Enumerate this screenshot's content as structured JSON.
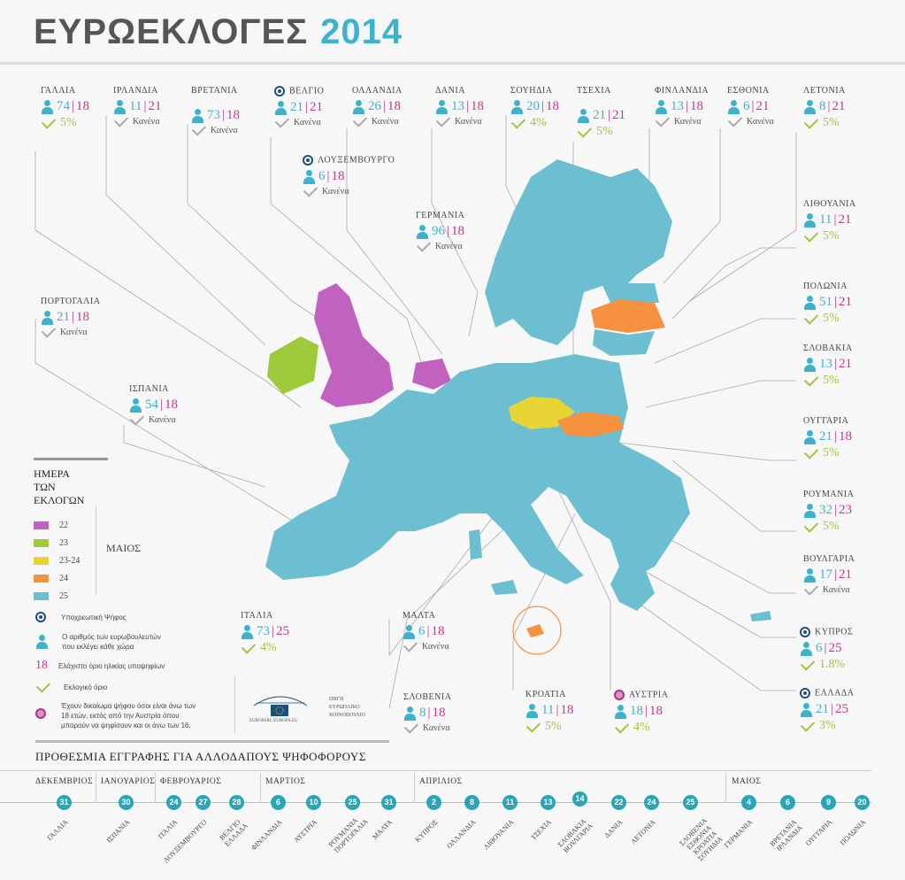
{
  "title": {
    "word": "ΕΥΡΩΕΚΛΟΓΕΣ",
    "year": "2014"
  },
  "colors": {
    "accent": "#3bb3cf",
    "age": "#c9348e",
    "threshold": "#a6c23a",
    "d22": "#c162c1",
    "d23": "#9dc93b",
    "d2324": "#e6d534",
    "d24": "#f5913f",
    "d25": "#6bbfd0"
  },
  "none_text": "Κανένα",
  "countries": [
    {
      "id": "gallia",
      "name": "ΓΑΛΛΙΑ",
      "seats": "74",
      "age": "18",
      "threshold": "5%"
    },
    {
      "id": "irlandia",
      "name": "ΙΡΛΑΝΔΙΑ",
      "seats": "11",
      "age": "21",
      "threshold": "Κανένα"
    },
    {
      "id": "vretania",
      "name": "ΒΡΕΤΑΝΙΑ",
      "seats": "73",
      "age": "18",
      "threshold": "Κανένα"
    },
    {
      "id": "velgio",
      "name": "ΒΕΛΓΙΟ",
      "seats": "21",
      "age": "21",
      "threshold": "Κανένα",
      "compulsory": true
    },
    {
      "id": "ollandia",
      "name": "ΟΛΛΑΝΔΙΑ",
      "seats": "26",
      "age": "18",
      "threshold": "Κανένα"
    },
    {
      "id": "dania",
      "name": "ΔΑΝΙΑ",
      "seats": "13",
      "age": "18",
      "threshold": "Κανένα"
    },
    {
      "id": "souidia",
      "name": "ΣΟΥΗΔΙΑ",
      "seats": "20",
      "age": "18",
      "threshold": "4%"
    },
    {
      "id": "tsexia",
      "name": "ΤΣΕΧΙΑ",
      "seats": "21",
      "age": "21",
      "threshold": "5%"
    },
    {
      "id": "finlandia",
      "name": "ΦΙΝΛΑΝΔΙΑ",
      "seats": "13",
      "age": "18",
      "threshold": "Κανένα"
    },
    {
      "id": "esthonia",
      "name": "ΕΣΘΟΝΙΑ",
      "seats": "6",
      "age": "21",
      "threshold": "Κανένα"
    },
    {
      "id": "letonia",
      "name": "ΛΕΤΟΝΙΑ",
      "seats": "8",
      "age": "21",
      "threshold": "5%"
    },
    {
      "id": "luxembourg",
      "name": "ΛΟΥΞΕΜΒΟΥΡΓΟ",
      "seats": "6",
      "age": "18",
      "threshold": "Κανένα",
      "compulsory": true
    },
    {
      "id": "germania",
      "name": "ΓΕΡΜΑΝΙΑ",
      "seats": "96",
      "age": "18",
      "threshold": "Κανένα"
    },
    {
      "id": "lithouania",
      "name": "ΛΙΘΟΥΑΝΙΑ",
      "seats": "11",
      "age": "21",
      "threshold": "5%"
    },
    {
      "id": "portogalia",
      "name": "ΠΟΡΤΟΓΑΛΙΑ",
      "seats": "21",
      "age": "18",
      "threshold": "Κανένα"
    },
    {
      "id": "polonia",
      "name": "ΠΟΛΩΝΙΑ",
      "seats": "51",
      "age": "21",
      "threshold": "5%"
    },
    {
      "id": "slovakia",
      "name": "ΣΛΟΒΑΚΙΑ",
      "seats": "13",
      "age": "21",
      "threshold": "5%"
    },
    {
      "id": "ispania",
      "name": "ΙΣΠΑΝΙΑ",
      "seats": "54",
      "age": "18",
      "threshold": "Κανένα"
    },
    {
      "id": "ouggaria",
      "name": "ΟΥΓΓΑΡΙΑ",
      "seats": "21",
      "age": "18",
      "threshold": "5%"
    },
    {
      "id": "roumania",
      "name": "ΡΟΥΜΑΝΙΑ",
      "seats": "32",
      "age": "23",
      "threshold": "5%"
    },
    {
      "id": "voulgaria",
      "name": "ΒΟΥΛΓΑΡΙΑ",
      "seats": "17",
      "age": "21",
      "threshold": "Κανένα"
    },
    {
      "id": "italia",
      "name": "ΙΤΑΛΙΑ",
      "seats": "73",
      "age": "25",
      "threshold": "4%"
    },
    {
      "id": "malta",
      "name": "ΜΑΛΤΑ",
      "seats": "6",
      "age": "18",
      "threshold": "Κανένα"
    },
    {
      "id": "kypros",
      "name": "ΚΥΠΡΟΣ",
      "seats": "6",
      "age": "25",
      "threshold": "1.8%",
      "compulsory": true
    },
    {
      "id": "ellada",
      "name": "ΕΛΛΑΔΑ",
      "seats": "21",
      "age": "25",
      "threshold": "3%",
      "compulsory": true
    },
    {
      "id": "slovenia",
      "name": "ΣΛΟΒΕΝΙΑ",
      "seats": "8",
      "age": "18",
      "threshold": "Κανένα"
    },
    {
      "id": "kroatia",
      "name": "ΚΡΟΑΤΙΑ",
      "seats": "11",
      "age": "18",
      "threshold": "5%"
    },
    {
      "id": "austria",
      "name": "ΑΥΣΤΡΙΑ",
      "seats": "18",
      "age": "18",
      "threshold": "4%",
      "pink": true
    }
  ],
  "legend": {
    "title_line1": "ΗΜΕΡΑ",
    "title_line2": "ΤΩΝ ΕΚΛΟΓΩΝ",
    "items": [
      {
        "label": "22",
        "color": "#c162c1"
      },
      {
        "label": "23",
        "color": "#9dc93b"
      },
      {
        "label": "23-24",
        "color": "#e6d534"
      },
      {
        "label": "24",
        "color": "#f5913f"
      },
      {
        "label": "25",
        "color": "#6bbfd0"
      }
    ],
    "month": "ΜΑΙΟΣ"
  },
  "key": {
    "compulsory": "Υποχρεωτική Ψήφος",
    "seats_l1": "Ο αριθμός των ευρωβουλευτών",
    "seats_l2": "που εκλέγει κάθε χώρα",
    "age_num": "18",
    "age": "Ελάχιστο όριο ηλικίας υποψηφίων",
    "threshold": "Εκλογικό όριο",
    "vote16_l1": "Έχουν δικαίωμα ψήφου όσοι είναι άνω των",
    "vote16_l2": "18 ετών, εκτός από την Αυστρία όπου",
    "vote16_l3": "μπορούν να ψηφίσουν και οι άνω των 16."
  },
  "source": {
    "l1": "ΠΗΓΗ",
    "l2": "ΕΥΡΩΠΑΪΚΟ",
    "l3": "ΚΟΙΝΟΒΟΥΛΙΟ",
    "logo_text": "EUROPARL.EUROPA.EU"
  },
  "deadlines": {
    "title": "ΠΡΟΘΕΣΜΙΑ ΕΓΓΡΑΦΗΣ ΓΙΑ ΑΛΛΟΔΑΠΟΥΣ ΨΗΦΟΦΟΡΟΥΣ",
    "months": [
      "ΔΕΚΕΜΒΡΙΟΣ",
      "ΙΑΝΟΥΑΡΙΟΣ",
      "ΦΕΒΡΟΥΑΡΙΟΣ",
      "ΜΑΡΤΙΟΣ",
      "ΑΠΡΙΛΙΟΣ",
      "ΜΑΙΟΣ"
    ],
    "items": [
      {
        "day": "31",
        "label": "ΓΑΛΛΙΑ"
      },
      {
        "day": "30",
        "label": "ΙΣΠΑΝΙΑ"
      },
      {
        "day": "24",
        "label": "ΙΤΑΛΙΑ"
      },
      {
        "day": "27",
        "label": "ΛΟΥΞΕΜΒΟΥΡΓΟ"
      },
      {
        "day": "28",
        "label": "ΒΕΛΓΙΟ ΕΛΛΑΔΑ"
      },
      {
        "day": "6",
        "label": "ΦΙΝΛΑΝΔΙΑ"
      },
      {
        "day": "10",
        "label": "ΑΥΣΤΡΙΑ"
      },
      {
        "day": "25",
        "label": "ΡΟΥΜΑΝΙΑ ΠΟΡΤΟΓΑΛΙΑ"
      },
      {
        "day": "31",
        "label": "ΜΑΛΤΑ"
      },
      {
        "day": "2",
        "label": "ΚΥΠΡΟΣ"
      },
      {
        "day": "8",
        "label": "ΟΛΛΑΝΔΙΑ"
      },
      {
        "day": "11",
        "label": "ΛΙΘΟΥΑΝΙΑ"
      },
      {
        "day": "13",
        "label": "ΤΣΕΧΙΑ"
      },
      {
        "day": "14",
        "label": "ΣΛΟΒΑΚΙΑ ΒΟΥΛΓΑΡΙΑ"
      },
      {
        "day": "22",
        "label": "ΔΑΝΙΑ"
      },
      {
        "day": "24",
        "label": "ΛΕΤΟΝΙΑ"
      },
      {
        "day": "25",
        "label": "ΣΛΟΒΕΝΙΑ ΕΣΘΟΝΙΑ ΚΡΟΑΤΙΑ ΣΟΥΗΔΙΑ"
      },
      {
        "day": "4",
        "label": "ΓΕΡΜΑΝΙΑ"
      },
      {
        "day": "6",
        "label": "ΒΡΕΤΑΝΙΑ ΙΡΛΑΝΔΙΑ"
      },
      {
        "day": "9",
        "label": "ΟΥΓΓΑΡΙΑ"
      },
      {
        "day": "20",
        "label": "ΠΟΛΩΝΙΑ"
      }
    ]
  }
}
